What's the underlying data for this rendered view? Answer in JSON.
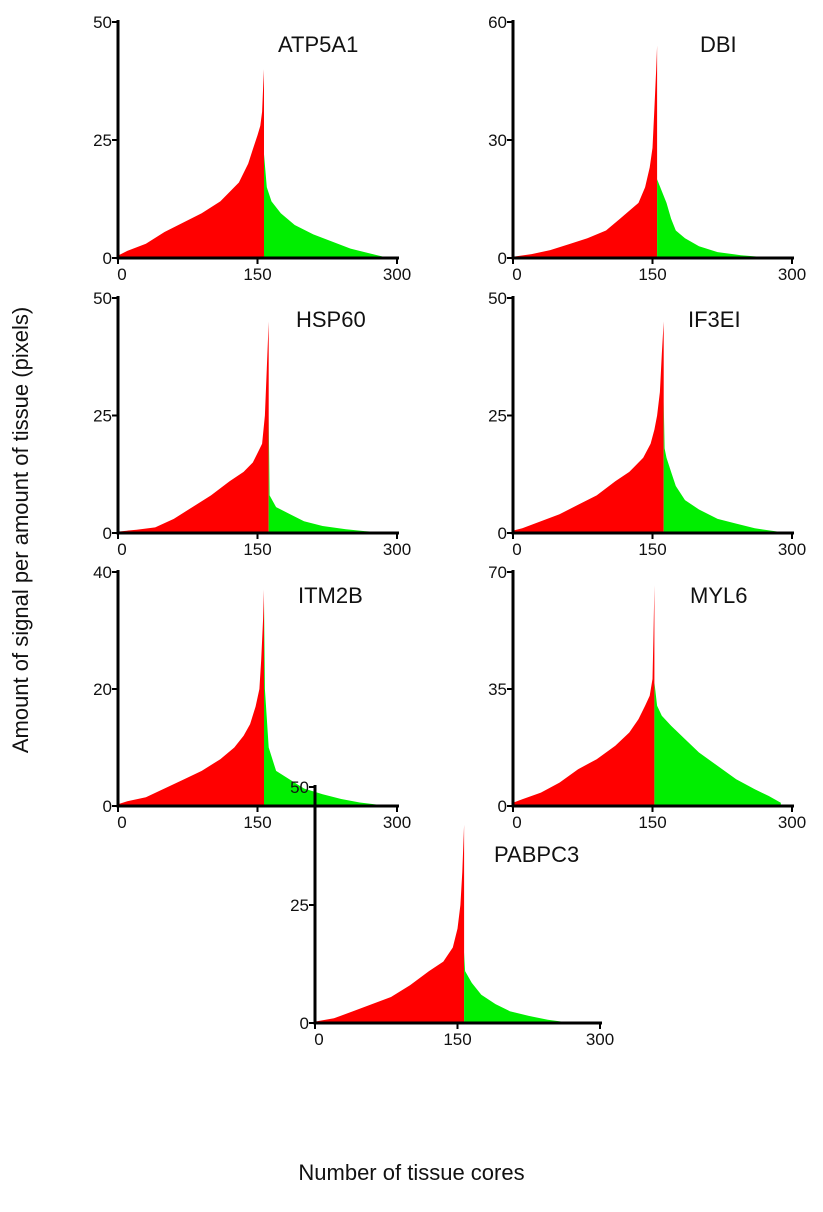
{
  "figure": {
    "ylabel": "Amount of signal per amount of tissue (pixels)",
    "xlabel": "Number of tissue cores"
  },
  "colors": {
    "above": "#ff0000",
    "below": "#00ee00",
    "axis": "#000000"
  },
  "chart_data": [
    {
      "type": "area",
      "title": "ATP5A1",
      "xlim": [
        0,
        300
      ],
      "ylim": [
        0,
        50
      ],
      "xticks": [
        "0",
        "150",
        "300"
      ],
      "yticks": [
        "0",
        "25",
        "50"
      ],
      "split": 157,
      "end": 285,
      "red": [
        [
          0,
          0.5
        ],
        [
          10,
          1.5
        ],
        [
          30,
          3
        ],
        [
          50,
          5.5
        ],
        [
          70,
          7.5
        ],
        [
          90,
          9.5
        ],
        [
          110,
          12
        ],
        [
          130,
          16
        ],
        [
          140,
          20
        ],
        [
          145,
          23
        ],
        [
          150,
          26
        ],
        [
          153,
          28
        ],
        [
          155,
          31
        ],
        [
          156,
          36
        ],
        [
          157,
          40
        ]
      ],
      "green": [
        [
          157,
          22
        ],
        [
          160,
          15
        ],
        [
          165,
          12
        ],
        [
          175,
          9.5
        ],
        [
          190,
          7
        ],
        [
          210,
          5
        ],
        [
          230,
          3.5
        ],
        [
          250,
          2
        ],
        [
          270,
          1
        ],
        [
          285,
          0.3
        ]
      ]
    },
    {
      "type": "area",
      "title": "DBI",
      "xlim": [
        0,
        300
      ],
      "ylim": [
        0,
        60
      ],
      "xticks": [
        "0",
        "150",
        "300"
      ],
      "yticks": [
        "0",
        "30",
        "60"
      ],
      "split": 155,
      "end": 265,
      "red": [
        [
          0,
          0.3
        ],
        [
          20,
          1
        ],
        [
          40,
          2
        ],
        [
          60,
          3.5
        ],
        [
          80,
          5
        ],
        [
          100,
          7
        ],
        [
          115,
          10
        ],
        [
          125,
          12
        ],
        [
          135,
          14
        ],
        [
          142,
          18
        ],
        [
          147,
          23
        ],
        [
          150,
          28
        ],
        [
          152,
          38
        ],
        [
          154,
          48
        ],
        [
          155,
          54
        ]
      ],
      "green": [
        [
          155,
          20
        ],
        [
          160,
          17
        ],
        [
          165,
          14
        ],
        [
          170,
          10
        ],
        [
          175,
          7
        ],
        [
          185,
          5
        ],
        [
          200,
          3
        ],
        [
          220,
          1.5
        ],
        [
          245,
          0.7
        ],
        [
          265,
          0.3
        ]
      ]
    },
    {
      "type": "area",
      "title": "HSP60",
      "xlim": [
        0,
        300
      ],
      "ylim": [
        0,
        50
      ],
      "xticks": [
        "0",
        "150",
        "300"
      ],
      "yticks": [
        "0",
        "25",
        "50"
      ],
      "split": 162,
      "end": 280,
      "red": [
        [
          0,
          0.3
        ],
        [
          20,
          0.7
        ],
        [
          40,
          1.2
        ],
        [
          60,
          3
        ],
        [
          80,
          5.5
        ],
        [
          100,
          8
        ],
        [
          120,
          11
        ],
        [
          135,
          13
        ],
        [
          145,
          15
        ],
        [
          150,
          17
        ],
        [
          155,
          19
        ],
        [
          158,
          25
        ],
        [
          160,
          35
        ],
        [
          162,
          45
        ]
      ],
      "green": [
        [
          162,
          25
        ],
        [
          163,
          8
        ],
        [
          170,
          5.5
        ],
        [
          185,
          4
        ],
        [
          200,
          2.5
        ],
        [
          220,
          1.5
        ],
        [
          245,
          0.8
        ],
        [
          265,
          0.4
        ],
        [
          280,
          0.2
        ]
      ]
    },
    {
      "type": "area",
      "title": "IF3EI",
      "xlim": [
        0,
        300
      ],
      "ylim": [
        0,
        50
      ],
      "xticks": [
        "0",
        "150",
        "300"
      ],
      "yticks": [
        "0",
        "25",
        "50"
      ],
      "split": 162,
      "end": 285,
      "red": [
        [
          0,
          0.5
        ],
        [
          10,
          1
        ],
        [
          30,
          2.5
        ],
        [
          50,
          4
        ],
        [
          70,
          6
        ],
        [
          90,
          8
        ],
        [
          110,
          11
        ],
        [
          125,
          13
        ],
        [
          140,
          16
        ],
        [
          148,
          19
        ],
        [
          152,
          22
        ],
        [
          155,
          25
        ],
        [
          158,
          30
        ],
        [
          160,
          38
        ],
        [
          162,
          45
        ]
      ],
      "green": [
        [
          162,
          28
        ],
        [
          163,
          18
        ],
        [
          165,
          16
        ],
        [
          170,
          13
        ],
        [
          175,
          10
        ],
        [
          185,
          7
        ],
        [
          200,
          5
        ],
        [
          220,
          3
        ],
        [
          240,
          2
        ],
        [
          260,
          1
        ],
        [
          285,
          0.3
        ]
      ]
    },
    {
      "type": "area",
      "title": "ITM2B",
      "xlim": [
        0,
        300
      ],
      "ylim": [
        0,
        40
      ],
      "xticks": [
        "0",
        "150",
        "300"
      ],
      "yticks": [
        "0",
        "20",
        "40"
      ],
      "split": 157,
      "end": 280,
      "red": [
        [
          0,
          0.3
        ],
        [
          10,
          0.8
        ],
        [
          30,
          1.5
        ],
        [
          50,
          3
        ],
        [
          70,
          4.5
        ],
        [
          90,
          6
        ],
        [
          110,
          8
        ],
        [
          125,
          10
        ],
        [
          135,
          12
        ],
        [
          142,
          14
        ],
        [
          148,
          17
        ],
        [
          152,
          20
        ],
        [
          154,
          25
        ],
        [
          156,
          32
        ],
        [
          157,
          37
        ]
      ],
      "green": [
        [
          157,
          35
        ],
        [
          158,
          20
        ],
        [
          162,
          10
        ],
        [
          170,
          6
        ],
        [
          185,
          4.5
        ],
        [
          200,
          3
        ],
        [
          220,
          2
        ],
        [
          240,
          1.2
        ],
        [
          260,
          0.6
        ],
        [
          280,
          0.2
        ]
      ]
    },
    {
      "type": "area",
      "title": "MYL6",
      "xlim": [
        0,
        300
      ],
      "ylim": [
        0,
        70
      ],
      "xticks": [
        "0",
        "150",
        "300"
      ],
      "yticks": [
        "0",
        "35",
        "70"
      ],
      "split": 152,
      "end": 288,
      "red": [
        [
          0,
          1
        ],
        [
          10,
          2
        ],
        [
          30,
          4
        ],
        [
          50,
          7
        ],
        [
          70,
          11
        ],
        [
          90,
          14
        ],
        [
          110,
          18
        ],
        [
          125,
          22
        ],
        [
          135,
          26
        ],
        [
          142,
          30
        ],
        [
          147,
          33
        ],
        [
          150,
          38
        ],
        [
          151,
          50
        ],
        [
          152,
          66
        ]
      ],
      "green": [
        [
          152,
          37
        ],
        [
          155,
          30
        ],
        [
          160,
          27
        ],
        [
          170,
          24
        ],
        [
          185,
          20
        ],
        [
          200,
          16
        ],
        [
          220,
          12
        ],
        [
          240,
          8
        ],
        [
          260,
          5
        ],
        [
          275,
          3
        ],
        [
          288,
          1
        ]
      ]
    },
    {
      "type": "area",
      "title": "PABPC3",
      "xlim": [
        0,
        300
      ],
      "ylim": [
        0,
        50
      ],
      "xticks": [
        "0",
        "150",
        "300"
      ],
      "yticks": [
        "0",
        "25",
        "50"
      ],
      "split": 157,
      "end": 275,
      "red": [
        [
          0,
          0.3
        ],
        [
          20,
          1
        ],
        [
          40,
          2.5
        ],
        [
          60,
          4
        ],
        [
          80,
          5.5
        ],
        [
          100,
          8
        ],
        [
          120,
          11
        ],
        [
          135,
          13
        ],
        [
          145,
          16
        ],
        [
          150,
          20
        ],
        [
          153,
          25
        ],
        [
          155,
          32
        ],
        [
          157,
          42
        ]
      ],
      "green": [
        [
          157,
          15
        ],
        [
          158,
          11
        ],
        [
          165,
          8.5
        ],
        [
          175,
          6
        ],
        [
          190,
          4
        ],
        [
          205,
          2.5
        ],
        [
          225,
          1.5
        ],
        [
          245,
          0.7
        ],
        [
          260,
          0.3
        ],
        [
          275,
          0.1
        ]
      ]
    }
  ]
}
